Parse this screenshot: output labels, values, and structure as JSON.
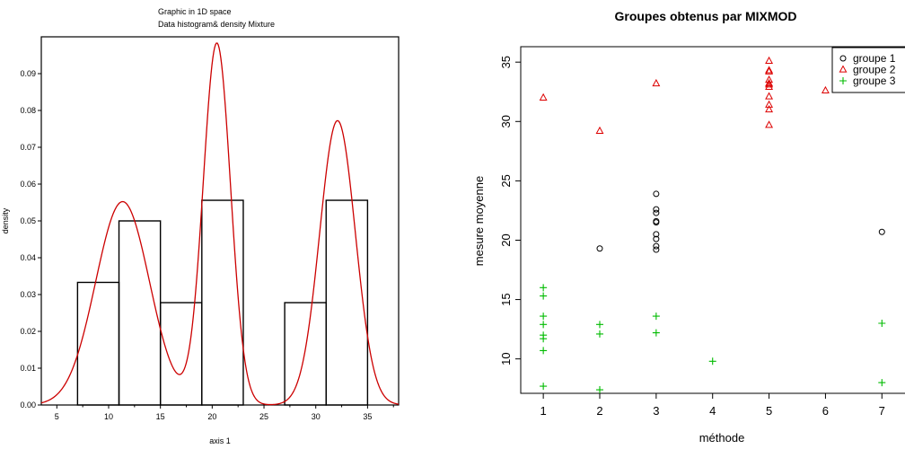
{
  "chart_data": [
    {
      "type": "bar",
      "title": "Graphic in 1D space",
      "subtitle": "Data histogram& density Mixture",
      "xlabel": "axis 1",
      "ylabel": "density",
      "xlim": [
        3.5,
        38
      ],
      "ylim": [
        0,
        0.1
      ],
      "xticks": [
        "5",
        "10",
        "15",
        "20",
        "25",
        "30",
        "35"
      ],
      "yticks": [
        "0.00",
        "0.01",
        "0.02",
        "0.03",
        "0.04",
        "0.05",
        "0.06",
        "0.07",
        "0.08",
        "0.09"
      ],
      "histogram": [
        {
          "x0": 7,
          "x1": 11,
          "density": 0.0333
        },
        {
          "x0": 11,
          "x1": 15,
          "density": 0.05
        },
        {
          "x0": 15,
          "x1": 19,
          "density": 0.0278
        },
        {
          "x0": 19,
          "x1": 23,
          "density": 0.0556
        },
        {
          "x0": 23,
          "x1": 27,
          "density": 0
        },
        {
          "x0": 27,
          "x1": 31,
          "density": 0.0278
        },
        {
          "x0": 31,
          "x1": 35,
          "density": 0.0556
        }
      ],
      "density_curve_color": "#cc0000",
      "mixture_components": [
        {
          "mean": 11.35,
          "sd": 2.6,
          "weight": 0.36
        },
        {
          "mean": 20.45,
          "sd": 1.32,
          "weight": 0.325
        },
        {
          "mean": 32.1,
          "sd": 1.72,
          "weight": 0.333
        }
      ]
    },
    {
      "type": "scatter",
      "title": "Groupes obtenus par MIXMOD",
      "xlabel": "méthode",
      "ylabel": "mesure moyenne",
      "xlim": [
        0.6,
        7.6
      ],
      "ylim": [
        7.1,
        36.3
      ],
      "xticks": [
        "1",
        "2",
        "3",
        "4",
        "5",
        "6",
        "7"
      ],
      "yticks": [
        "10",
        "15",
        "20",
        "25",
        "30",
        "35"
      ],
      "legend_position": "top-right",
      "series": [
        {
          "name": "groupe 1",
          "marker": "circle",
          "color": "#000000",
          "points": [
            [
              2,
              19.3
            ],
            [
              3,
              23.9
            ],
            [
              3,
              22.6
            ],
            [
              3,
              22.3
            ],
            [
              3,
              21.6
            ],
            [
              3,
              21.5
            ],
            [
              3,
              20.5
            ],
            [
              3,
              20.1
            ],
            [
              3,
              19.5
            ],
            [
              3,
              19.2
            ],
            [
              7,
              20.7
            ]
          ]
        },
        {
          "name": "groupe 2",
          "marker": "triangle",
          "color": "#dd0000",
          "points": [
            [
              1,
              32
            ],
            [
              2,
              29.2
            ],
            [
              3,
              33.2
            ],
            [
              5,
              35.1
            ],
            [
              5,
              34.3
            ],
            [
              5,
              34.2
            ],
            [
              5,
              33.5
            ],
            [
              5,
              33.2
            ],
            [
              5,
              33.1
            ],
            [
              5,
              32.9
            ],
            [
              5,
              32.1
            ],
            [
              5,
              31.4
            ],
            [
              5,
              31
            ],
            [
              5,
              29.7
            ],
            [
              6,
              32.6
            ]
          ]
        },
        {
          "name": "groupe 3",
          "marker": "plus",
          "color": "#00bb00",
          "points": [
            [
              1,
              16
            ],
            [
              1,
              15.3
            ],
            [
              1,
              13.6
            ],
            [
              1,
              12.9
            ],
            [
              1,
              12
            ],
            [
              1,
              11.7
            ],
            [
              1,
              10.7
            ],
            [
              1,
              7.7
            ],
            [
              2,
              12.9
            ],
            [
              2,
              12.1
            ],
            [
              2,
              7.4
            ],
            [
              3,
              13.6
            ],
            [
              3,
              12.2
            ],
            [
              4,
              9.8
            ],
            [
              7,
              13
            ],
            [
              7,
              8
            ]
          ]
        }
      ]
    }
  ]
}
